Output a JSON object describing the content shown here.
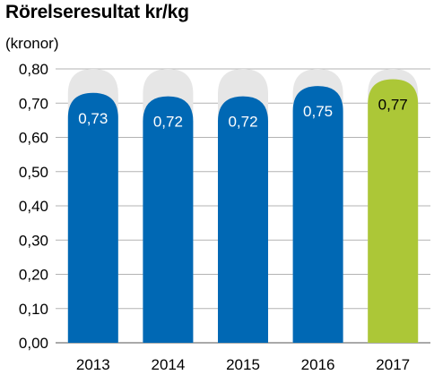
{
  "chart_data": {
    "type": "bar",
    "title": "Rörelseresultat kr/kg",
    "unit_label": "(kronor)",
    "categories": [
      "2013",
      "2014",
      "2015",
      "2016",
      "2017"
    ],
    "values": [
      0.73,
      0.72,
      0.72,
      0.75,
      0.77
    ],
    "value_labels": [
      "0,73",
      "0,72",
      "0,72",
      "0,75",
      "0,77"
    ],
    "xlabel": "",
    "ylabel": "",
    "ylim": [
      0,
      0.8
    ],
    "yticks": [
      0,
      0.1,
      0.2,
      0.3,
      0.4,
      0.5,
      0.6,
      0.7,
      0.8
    ],
    "ytick_labels": [
      "0,00",
      "0,10",
      "0,20",
      "0,30",
      "0,40",
      "0,50",
      "0,60",
      "0,70",
      "0,80"
    ],
    "grid": true,
    "legend": "none",
    "colors": {
      "bar": "#0068b4",
      "highlight_bar": "#acc737",
      "track": "#e6e6e6",
      "gridline": "#b3b3b3",
      "value_label_on_dark": "#ffffff",
      "value_label_on_light": "#000000"
    },
    "highlight_index": 4
  }
}
